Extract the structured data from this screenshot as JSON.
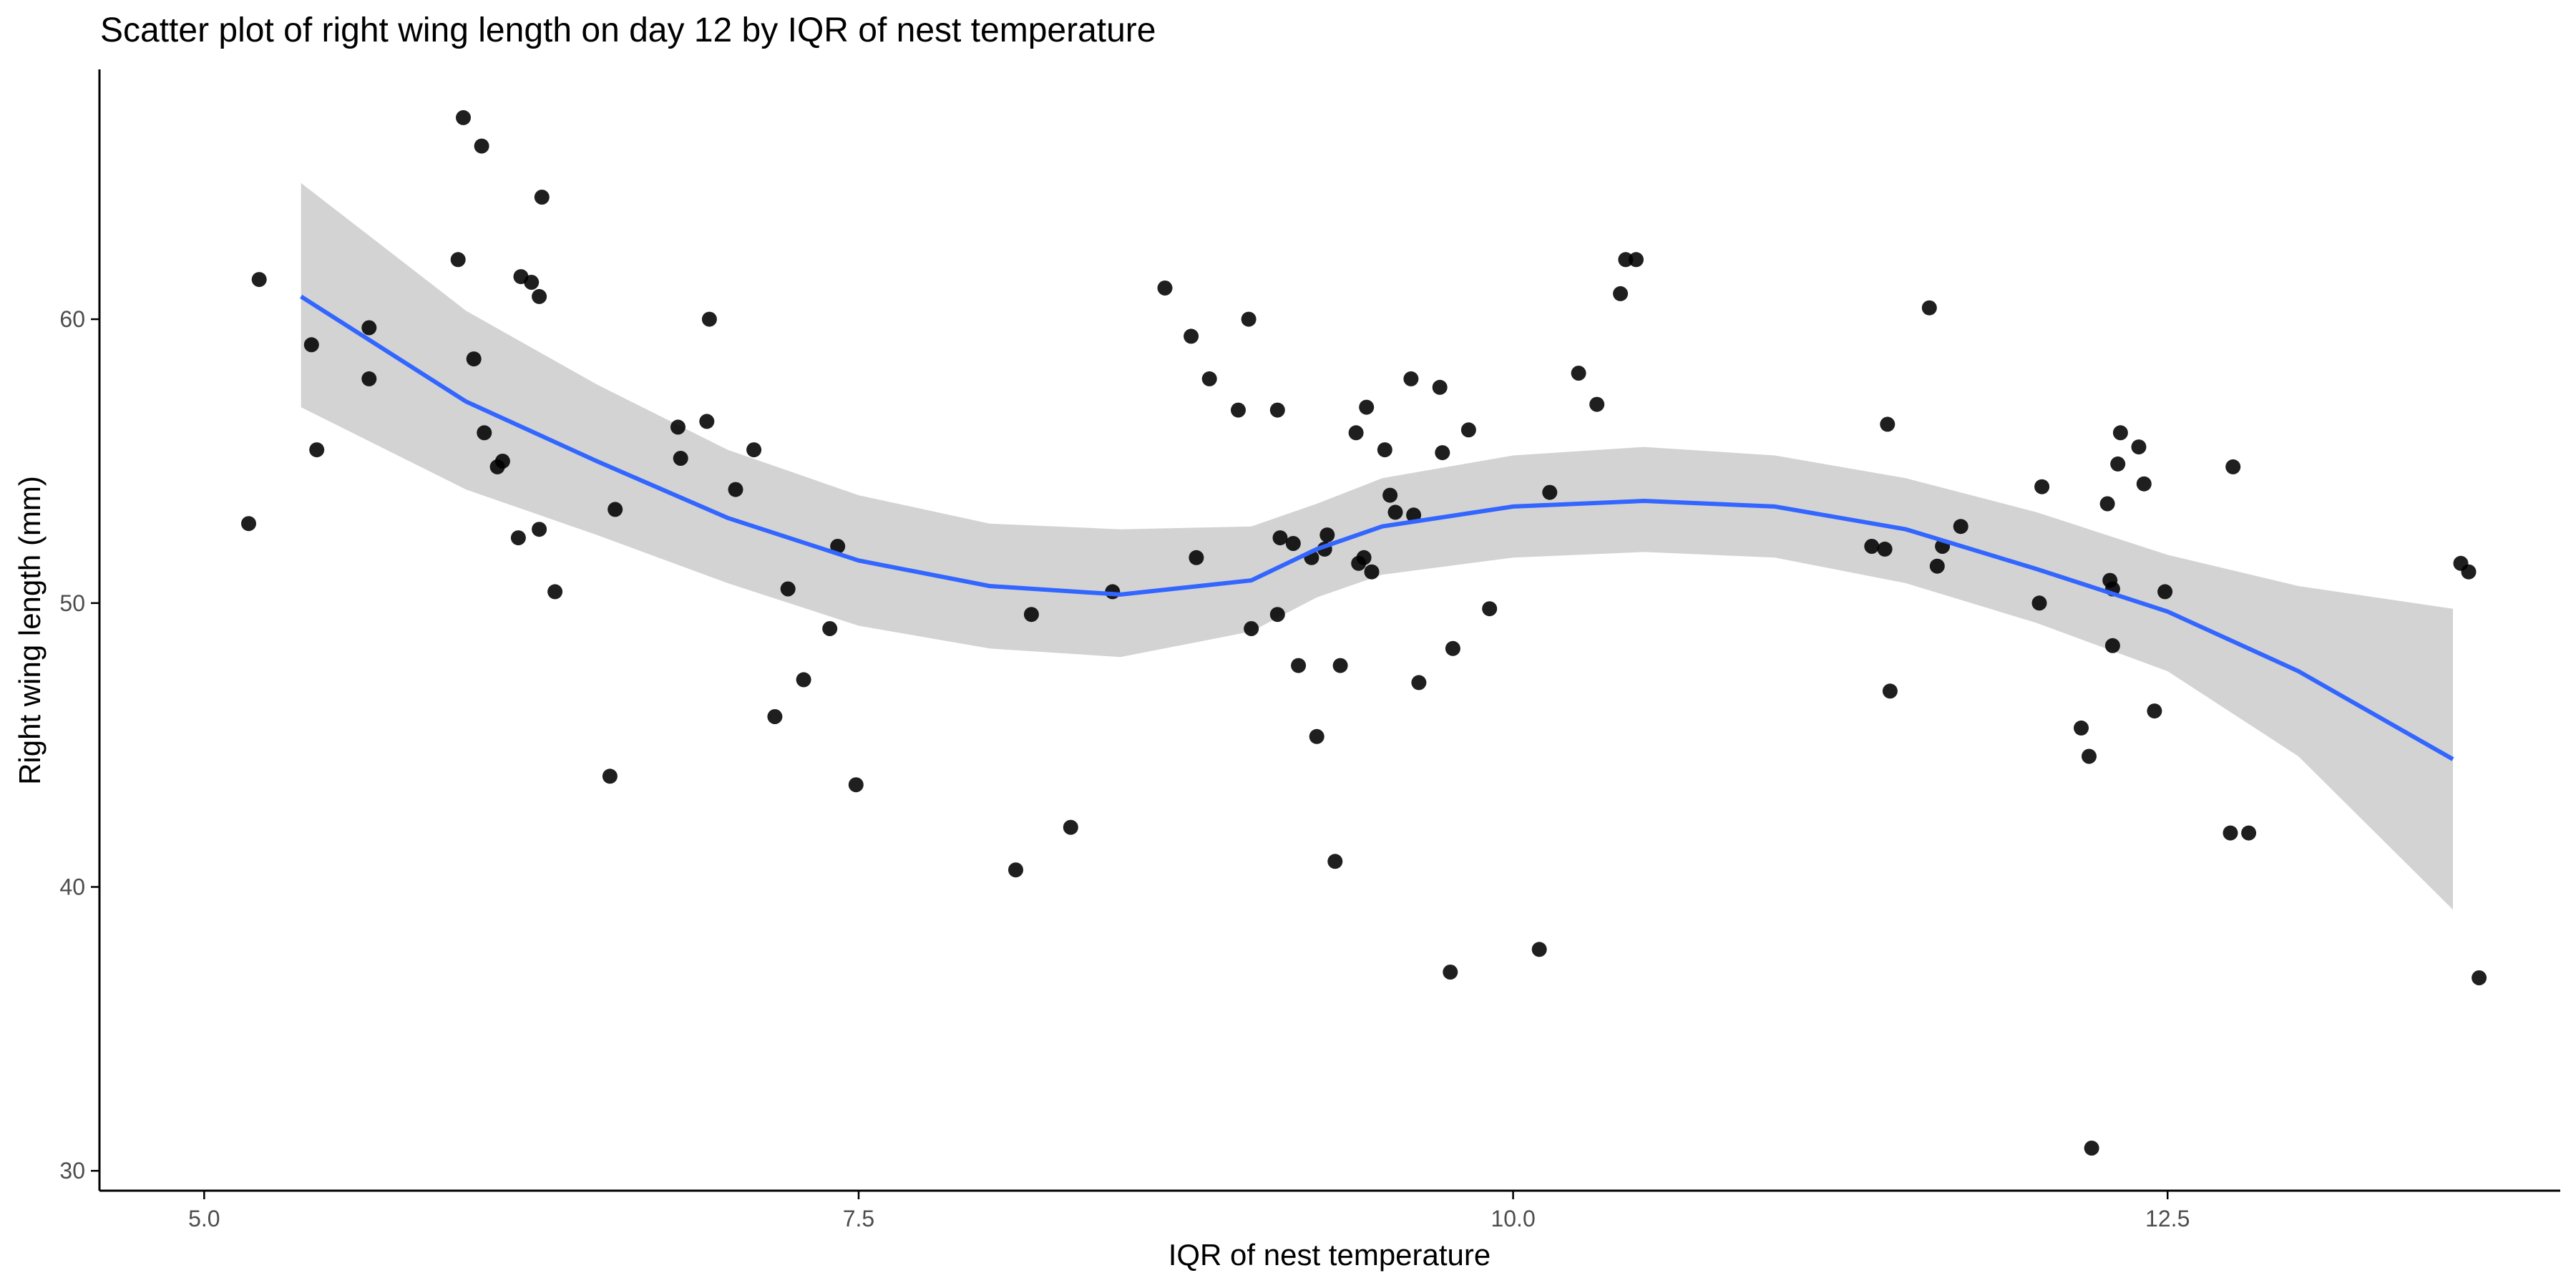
{
  "chart_data": {
    "type": "scatter",
    "title": "Scatter plot of right wing length on day 12 by IQR of nest temperature",
    "xlabel": "IQR of nest temperature",
    "ylabel": "Right wing length (mm)",
    "xlim": [
      4.6,
      14.0
    ],
    "ylim": [
      29.3,
      68.8
    ],
    "xticks": [
      5.0,
      7.5,
      10.0,
      12.5
    ],
    "xtick_labels": [
      "5.0",
      "7.5",
      "10.0",
      "12.5"
    ],
    "yticks": [
      30,
      40,
      50,
      60
    ],
    "ytick_labels": [
      "30",
      "40",
      "50",
      "60"
    ],
    "grid": false,
    "colors": {
      "points": "#000000",
      "smooth": "#3366FF",
      "ribbon": "#D3D3D3",
      "axis": "#000000"
    },
    "points": [
      {
        "x": 5.17,
        "y": 52.8
      },
      {
        "x": 5.21,
        "y": 61.4
      },
      {
        "x": 5.41,
        "y": 59.1
      },
      {
        "x": 5.43,
        "y": 55.4
      },
      {
        "x": 5.63,
        "y": 57.9
      },
      {
        "x": 5.63,
        "y": 59.7
      },
      {
        "x": 5.97,
        "y": 62.1
      },
      {
        "x": 5.99,
        "y": 67.1
      },
      {
        "x": 6.03,
        "y": 58.6
      },
      {
        "x": 6.07,
        "y": 56.0
      },
      {
        "x": 6.06,
        "y": 66.1
      },
      {
        "x": 6.12,
        "y": 54.8
      },
      {
        "x": 6.14,
        "y": 55.0
      },
      {
        "x": 6.2,
        "y": 52.3
      },
      {
        "x": 6.21,
        "y": 61.5
      },
      {
        "x": 6.25,
        "y": 61.3
      },
      {
        "x": 6.28,
        "y": 60.8
      },
      {
        "x": 6.28,
        "y": 52.6
      },
      {
        "x": 6.29,
        "y": 64.3
      },
      {
        "x": 6.34,
        "y": 50.4
      },
      {
        "x": 6.55,
        "y": 43.9
      },
      {
        "x": 6.57,
        "y": 53.3
      },
      {
        "x": 6.81,
        "y": 56.2
      },
      {
        "x": 6.82,
        "y": 55.1
      },
      {
        "x": 6.92,
        "y": 56.4
      },
      {
        "x": 6.93,
        "y": 60.0
      },
      {
        "x": 7.03,
        "y": 54.0
      },
      {
        "x": 7.1,
        "y": 55.4
      },
      {
        "x": 7.18,
        "y": 46.0
      },
      {
        "x": 7.23,
        "y": 50.5
      },
      {
        "x": 7.29,
        "y": 47.3
      },
      {
        "x": 7.39,
        "y": 49.1
      },
      {
        "x": 7.42,
        "y": 52.0
      },
      {
        "x": 7.49,
        "y": 43.6
      },
      {
        "x": 8.1,
        "y": 40.6
      },
      {
        "x": 8.16,
        "y": 49.6
      },
      {
        "x": 8.31,
        "y": 42.1
      },
      {
        "x": 8.47,
        "y": 50.4
      },
      {
        "x": 8.67,
        "y": 61.1
      },
      {
        "x": 8.77,
        "y": 59.4
      },
      {
        "x": 8.79,
        "y": 51.6
      },
      {
        "x": 8.84,
        "y": 57.9
      },
      {
        "x": 8.95,
        "y": 56.8
      },
      {
        "x": 8.99,
        "y": 60.0
      },
      {
        "x": 9.0,
        "y": 49.1
      },
      {
        "x": 9.1,
        "y": 56.8
      },
      {
        "x": 9.1,
        "y": 49.6
      },
      {
        "x": 9.11,
        "y": 52.3
      },
      {
        "x": 9.16,
        "y": 52.1
      },
      {
        "x": 9.18,
        "y": 47.8
      },
      {
        "x": 9.23,
        "y": 51.6
      },
      {
        "x": 9.25,
        "y": 45.3
      },
      {
        "x": 9.28,
        "y": 51.9
      },
      {
        "x": 9.29,
        "y": 52.4
      },
      {
        "x": 9.32,
        "y": 40.9
      },
      {
        "x": 9.34,
        "y": 47.8
      },
      {
        "x": 9.4,
        "y": 56.0
      },
      {
        "x": 9.41,
        "y": 51.4
      },
      {
        "x": 9.43,
        "y": 51.6
      },
      {
        "x": 9.44,
        "y": 56.9
      },
      {
        "x": 9.46,
        "y": 51.1
      },
      {
        "x": 9.51,
        "y": 55.4
      },
      {
        "x": 9.53,
        "y": 53.8
      },
      {
        "x": 9.55,
        "y": 53.2
      },
      {
        "x": 9.61,
        "y": 57.9
      },
      {
        "x": 9.62,
        "y": 53.1
      },
      {
        "x": 9.64,
        "y": 47.2
      },
      {
        "x": 9.72,
        "y": 57.6
      },
      {
        "x": 9.73,
        "y": 55.3
      },
      {
        "x": 9.77,
        "y": 48.4
      },
      {
        "x": 9.76,
        "y": 37.0
      },
      {
        "x": 9.83,
        "y": 56.1
      },
      {
        "x": 9.91,
        "y": 49.8
      },
      {
        "x": 10.1,
        "y": 37.8
      },
      {
        "x": 10.14,
        "y": 53.9
      },
      {
        "x": 10.25,
        "y": 58.1
      },
      {
        "x": 10.32,
        "y": 57.0
      },
      {
        "x": 10.41,
        "y": 60.9
      },
      {
        "x": 10.43,
        "y": 62.1
      },
      {
        "x": 10.47,
        "y": 62.1
      },
      {
        "x": 11.37,
        "y": 52.0
      },
      {
        "x": 11.42,
        "y": 51.9
      },
      {
        "x": 11.43,
        "y": 56.3
      },
      {
        "x": 11.44,
        "y": 46.9
      },
      {
        "x": 11.59,
        "y": 60.4
      },
      {
        "x": 11.62,
        "y": 51.3
      },
      {
        "x": 11.64,
        "y": 52.0
      },
      {
        "x": 11.71,
        "y": 52.7
      },
      {
        "x": 12.01,
        "y": 50.0
      },
      {
        "x": 12.02,
        "y": 54.1
      },
      {
        "x": 12.17,
        "y": 45.6
      },
      {
        "x": 12.2,
        "y": 44.6
      },
      {
        "x": 12.21,
        "y": 30.8
      },
      {
        "x": 12.27,
        "y": 53.5
      },
      {
        "x": 12.28,
        "y": 50.8
      },
      {
        "x": 12.29,
        "y": 50.5
      },
      {
        "x": 12.29,
        "y": 48.5
      },
      {
        "x": 12.31,
        "y": 54.9
      },
      {
        "x": 12.32,
        "y": 56.0
      },
      {
        "x": 12.39,
        "y": 55.5
      },
      {
        "x": 12.41,
        "y": 54.2
      },
      {
        "x": 12.45,
        "y": 46.2
      },
      {
        "x": 12.49,
        "y": 50.4
      },
      {
        "x": 12.74,
        "y": 41.9
      },
      {
        "x": 12.75,
        "y": 54.8
      },
      {
        "x": 12.81,
        "y": 41.9
      },
      {
        "x": 13.62,
        "y": 51.4
      },
      {
        "x": 13.65,
        "y": 51.1
      },
      {
        "x": 13.69,
        "y": 36.8
      }
    ],
    "smooth": {
      "x": [
        5.37,
        6.0,
        6.5,
        7.0,
        7.5,
        8.0,
        8.5,
        9.0,
        9.25,
        9.5,
        10.0,
        10.5,
        11.0,
        11.5,
        12.0,
        12.5,
        13.0,
        13.59
      ],
      "y": [
        60.8,
        57.1,
        55.0,
        53.0,
        51.5,
        50.6,
        50.3,
        50.8,
        51.9,
        52.7,
        53.4,
        53.6,
        53.4,
        52.6,
        51.2,
        49.7,
        47.6,
        44.5
      ],
      "lower": [
        56.9,
        54.0,
        52.4,
        50.7,
        49.2,
        48.4,
        48.1,
        49.0,
        50.2,
        51.0,
        51.6,
        51.8,
        51.6,
        50.7,
        49.3,
        47.6,
        44.6,
        39.2
      ],
      "upper": [
        64.8,
        60.3,
        57.7,
        55.4,
        53.8,
        52.8,
        52.6,
        52.7,
        53.5,
        54.4,
        55.2,
        55.5,
        55.2,
        54.4,
        53.2,
        51.7,
        50.6,
        49.8
      ]
    }
  }
}
